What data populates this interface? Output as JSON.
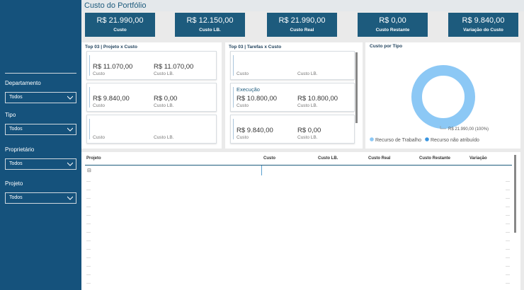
{
  "header": {
    "title": "Custo do Portfólio"
  },
  "kpis": [
    {
      "value": "R$ 21.990,00",
      "label": "Custo"
    },
    {
      "value": "R$ 12.150,00",
      "label": "Custo LB."
    },
    {
      "value": "R$ 21.990,00",
      "label": "Custo Real"
    },
    {
      "value": "R$ 0,00",
      "label": "Custo Restante"
    },
    {
      "value": "R$ 9.840,00",
      "label": "Variação do Custo"
    }
  ],
  "filters": [
    {
      "label": "Departamento",
      "value": "Todos"
    },
    {
      "label": "Tipo",
      "value": "Todos"
    },
    {
      "label": "Proprietário",
      "value": "Todos"
    },
    {
      "label": "Projeto",
      "value": "Todos"
    }
  ],
  "panels": [
    {
      "title": "Top 03 | Projeto x Custo",
      "cards": [
        {
          "items": [
            {
              "value": "R$ 11.070,00",
              "label": "Custo"
            },
            {
              "value": "R$ 11.070,00",
              "label": "Custo LB."
            }
          ]
        },
        {
          "items": [
            {
              "value": "R$ 9.840,00",
              "label": "Custo"
            },
            {
              "value": "R$ 0,00",
              "label": "Custo LB."
            }
          ]
        },
        {
          "items": [
            {
              "label": "Custo"
            },
            {
              "label": "Custo LB."
            }
          ]
        }
      ]
    },
    {
      "title": "Top 03 | Tarefas x Custo",
      "cards": [
        {
          "items": [
            {
              "label": "Custo"
            },
            {
              "label": "Custo LB."
            }
          ]
        },
        {
          "name": "Execução",
          "items": [
            {
              "value": "R$ 10.800,00",
              "label": "Custo"
            },
            {
              "value": "R$ 10.800,00",
              "label": "Custo LB."
            }
          ]
        },
        {
          "items": [
            {
              "value": "R$ 9.840,00",
              "label": "Custo"
            },
            {
              "value": "R$ 0,00",
              "label": "Custo LB."
            }
          ]
        }
      ]
    }
  ],
  "chart_data": {
    "type": "pie",
    "title": "Custo por Tipo",
    "categories": [
      "Recurso de Trabalho",
      "Recurso não atribuído"
    ],
    "values": [
      21990,
      0
    ],
    "value_labels": [
      "R$ 21.990,00 (100%)",
      null
    ],
    "colors": [
      "#8cc8f5",
      "#3a95e0"
    ]
  },
  "table": {
    "columns": [
      "Projeto",
      "Custo",
      "Custo LB.",
      "Custo Real",
      "Custo Restante",
      "Variação"
    ],
    "rows": [
      [
        "⊟"
      ]
    ]
  }
}
